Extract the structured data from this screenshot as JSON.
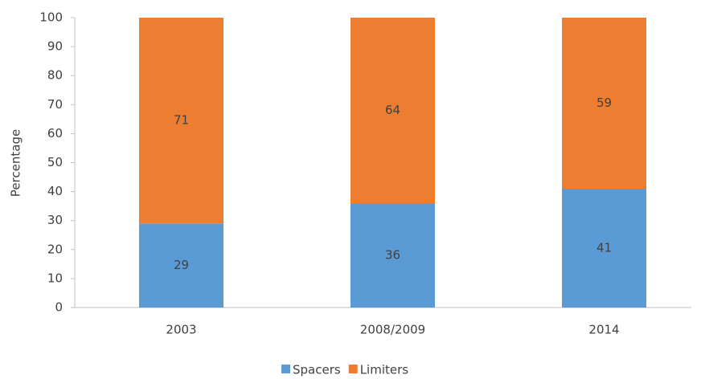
{
  "chart_data": {
    "type": "bar",
    "stacked": true,
    "y_label": "Percentage",
    "categories": [
      "2003",
      "2008/2009",
      "2014"
    ],
    "series": [
      {
        "name": "Spacers",
        "color": "#5b9bd5",
        "values": [
          29,
          36,
          41
        ]
      },
      {
        "name": "Limiters",
        "color": "#ed7d31",
        "values": [
          71,
          64,
          59
        ]
      }
    ],
    "ylim": [
      0,
      100
    ],
    "yticks": [
      0,
      10,
      20,
      30,
      40,
      50,
      60,
      70,
      80,
      90,
      100
    ],
    "grid": false,
    "legend": "bottom"
  }
}
